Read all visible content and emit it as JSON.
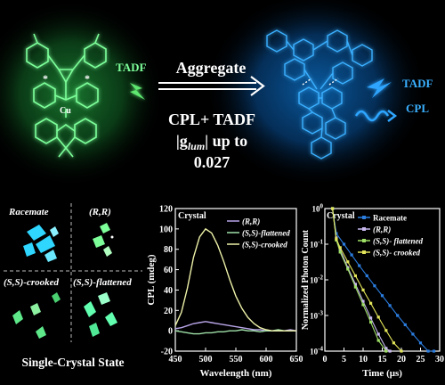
{
  "top": {
    "left_label": "TADF",
    "arrow_label": "Aggregate",
    "caption_line1": "CPL+ TADF",
    "caption_line2_pre": "|g",
    "caption_line2_sub": "lum",
    "caption_line2_post": "| up to",
    "caption_line3": "0.027",
    "right_label_1": "TADF",
    "right_label_2": "CPL",
    "molecule_atom": "Cu",
    "colors": {
      "green_glow": "#3dff6a",
      "blue_glow": "#1e8fff",
      "arrow": "#ffffff"
    }
  },
  "crystals": {
    "panels": [
      {
        "label": "Racemate",
        "color": "#2fd6ff"
      },
      {
        "label": "(R,R)",
        "color": "#7dff9a"
      },
      {
        "label": "(S,S)-crooked",
        "color": "#5ee88a"
      },
      {
        "label": "(S,S)-flattened",
        "color": "#62ffb0"
      }
    ],
    "caption": "Single-Crystal State"
  },
  "chart_data": [
    {
      "type": "line",
      "annotation": "Crystal",
      "xlabel": "Wavelength (nm)",
      "ylabel": "CPL (mdeg)",
      "xlim": [
        450,
        650
      ],
      "ylim": [
        -20,
        120
      ],
      "xticks": [
        450,
        500,
        550,
        600,
        650
      ],
      "yticks": [
        -20,
        0,
        20,
        40,
        60,
        80,
        100,
        120
      ],
      "legend_position": "top-right",
      "x": [
        450,
        460,
        470,
        480,
        490,
        500,
        510,
        520,
        530,
        540,
        550,
        560,
        570,
        580,
        590,
        600,
        610,
        620,
        630,
        640,
        650
      ],
      "series": [
        {
          "name": "(R,R)",
          "color": "#b9a5e8",
          "values": [
            2,
            3,
            5,
            7,
            8,
            9,
            8,
            7,
            6,
            5,
            4,
            3,
            2,
            1,
            1,
            0,
            0,
            0,
            0,
            1,
            0
          ]
        },
        {
          "name": "(S,S)-flattened",
          "color": "#9fe0a8",
          "values": [
            0,
            -1,
            -2,
            -3,
            -3,
            -2,
            -2,
            -1,
            -1,
            0,
            0,
            1,
            0,
            0,
            -1,
            0,
            0,
            1,
            0,
            0,
            0
          ]
        },
        {
          "name": "(S,S)-crooked",
          "color": "#eef2a8",
          "values": [
            5,
            18,
            42,
            72,
            92,
            100,
            96,
            84,
            68,
            50,
            34,
            22,
            13,
            7,
            3,
            1,
            0,
            0,
            0,
            0,
            0
          ]
        }
      ]
    },
    {
      "type": "scatter",
      "annotation": "Crystal",
      "xlabel": "Time (μs)",
      "ylabel": "Normalized Photon Count",
      "xlim": [
        0,
        30
      ],
      "y_scale": "log",
      "ylim": [
        0.0001,
        1
      ],
      "xticks": [
        0,
        5,
        10,
        15,
        20,
        25,
        30
      ],
      "yticks": [
        "10^0",
        "10^-1",
        "10^-2",
        "10^-3",
        "10^-4"
      ],
      "legend_position": "top-right",
      "series": [
        {
          "name": "Racemate",
          "color": "#2b7de0",
          "x": [
            2,
            3,
            5,
            7,
            9,
            11,
            13,
            15,
            17,
            19,
            21,
            23,
            25,
            27,
            28.5
          ],
          "values": [
            1,
            0.2,
            0.1,
            0.05,
            0.025,
            0.013,
            0.0068,
            0.0036,
            0.0019,
            0.001,
            0.00055,
            0.0003,
            0.00017,
            0.0001,
            0.0001
          ]
        },
        {
          "name": "(R,R)",
          "color": "#c8b8f0",
          "x": [
            2,
            3,
            4,
            6,
            8,
            10,
            12,
            14,
            16,
            17
          ],
          "values": [
            1,
            0.15,
            0.07,
            0.022,
            0.0075,
            0.0025,
            0.00085,
            0.0003,
            0.00012,
            0.0001
          ]
        },
        {
          "name": "(S,S)- flattened",
          "color": "#9fe066",
          "x": [
            2,
            3,
            4,
            6,
            8,
            10,
            12,
            14,
            16
          ],
          "values": [
            1,
            0.13,
            0.06,
            0.02,
            0.0063,
            0.002,
            0.00065,
            0.0002,
            0.0001
          ]
        },
        {
          "name": "(S,S)- crooked",
          "color": "#e2e45a",
          "x": [
            2,
            3,
            4,
            6,
            8,
            10,
            12,
            14,
            16,
            18,
            20
          ],
          "values": [
            1,
            0.14,
            0.08,
            0.032,
            0.013,
            0.0052,
            0.0022,
            0.0009,
            0.00038,
            0.00017,
            0.0001
          ]
        }
      ]
    }
  ]
}
